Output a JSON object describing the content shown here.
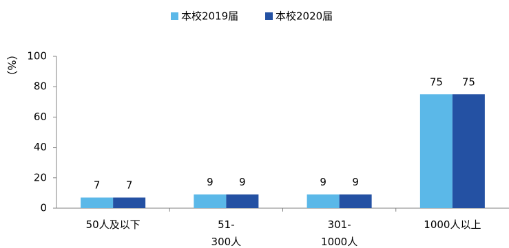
{
  "chart_data": {
    "type": "bar",
    "ylabel": "（%）",
    "ylim": [
      0,
      100
    ],
    "yticks": [
      0,
      20,
      40,
      60,
      80,
      100
    ],
    "grid": false,
    "legend_position": "top",
    "categories": [
      [
        "50人及以下"
      ],
      [
        "51-",
        "300人"
      ],
      [
        "301-",
        "1000人"
      ],
      [
        "1000人以上"
      ]
    ],
    "series": [
      {
        "name": "本校2019届",
        "color": "#5BB8E8",
        "values": [
          7,
          9,
          9,
          75
        ]
      },
      {
        "name": "本校2020届",
        "color": "#2451A3",
        "values": [
          7,
          9,
          9,
          75
        ]
      }
    ]
  }
}
